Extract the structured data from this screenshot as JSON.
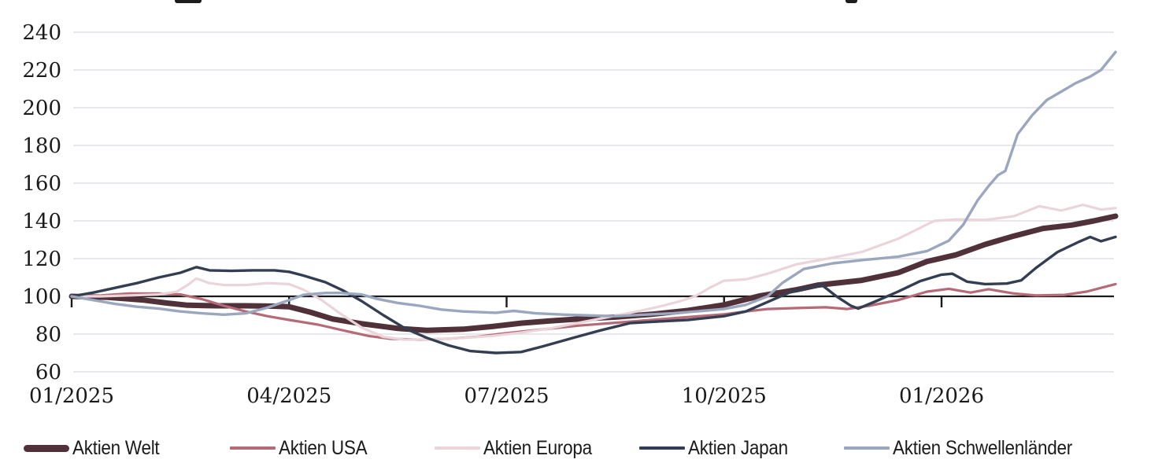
{
  "chart_data": {
    "type": "line",
    "x_unit": "months_since_01_2025",
    "x_axis": {
      "tick_labels": [
        {
          "t": 0,
          "label": "01/2025"
        },
        {
          "t": 3,
          "label": "04/2025"
        },
        {
          "t": 6,
          "label": "07/2025"
        },
        {
          "t": 9,
          "label": "10/2025"
        },
        {
          "t": 12,
          "label": "01/2026"
        }
      ],
      "range": [
        0,
        14.4
      ]
    },
    "y_axis": {
      "min": 60,
      "max": 240,
      "step": 20,
      "ticks": [
        240,
        220,
        200,
        180,
        160,
        140,
        120,
        100,
        80,
        60
      ],
      "baseline": 100
    },
    "grid_on": true,
    "grid_color": "#dfdfe5",
    "baseline_color": "#1a1a1a",
    "text_color": "#1a1a1a",
    "legend_position": "bottom",
    "series": [
      {
        "name": "Aktien Welt",
        "slug": "aktien-welt",
        "color": "#50313a",
        "width": 7,
        "points": [
          [
            0,
            100
          ],
          [
            0.5,
            99.5
          ],
          [
            1,
            98
          ],
          [
            1.3,
            96.5
          ],
          [
            1.6,
            95.3
          ],
          [
            2,
            95
          ],
          [
            2.4,
            95
          ],
          [
            2.8,
            94.8
          ],
          [
            3,
            94.5
          ],
          [
            3.3,
            91.5
          ],
          [
            3.6,
            88
          ],
          [
            4,
            85.5
          ],
          [
            4.5,
            83
          ],
          [
            4.9,
            82
          ],
          [
            5.4,
            82.6
          ],
          [
            5.8,
            84
          ],
          [
            6.2,
            85.8
          ],
          [
            6.6,
            87
          ],
          [
            7,
            88
          ],
          [
            7.5,
            89
          ],
          [
            8,
            90.5
          ],
          [
            8.5,
            92.5
          ],
          [
            9,
            95.5
          ],
          [
            9.5,
            100.3
          ],
          [
            10,
            103.5
          ],
          [
            10.3,
            106
          ],
          [
            10.9,
            108.5
          ],
          [
            11.4,
            112.5
          ],
          [
            11.8,
            118.5
          ],
          [
            12.2,
            122
          ],
          [
            12.6,
            127.5
          ],
          [
            13,
            132
          ],
          [
            13.4,
            136
          ],
          [
            13.8,
            137.8
          ],
          [
            14.1,
            140
          ],
          [
            14.4,
            142.5
          ]
        ]
      },
      {
        "name": "Aktien USA",
        "slug": "aktien-usa",
        "color": "#b56b77",
        "width": 3.2,
        "points": [
          [
            0,
            100
          ],
          [
            0.4,
            100.5
          ],
          [
            0.8,
            101.5
          ],
          [
            1.2,
            101.5
          ],
          [
            1.5,
            101
          ],
          [
            1.8,
            98.5
          ],
          [
            2.1,
            95
          ],
          [
            2.4,
            92
          ],
          [
            2.7,
            89.5
          ],
          [
            3,
            87.5
          ],
          [
            3.4,
            85
          ],
          [
            3.8,
            81.5
          ],
          [
            4.1,
            79
          ],
          [
            4.4,
            77.5
          ],
          [
            4.8,
            77
          ],
          [
            5.2,
            77.6
          ],
          [
            5.6,
            78.6
          ],
          [
            6,
            80.5
          ],
          [
            6.5,
            82.5
          ],
          [
            7,
            84.5
          ],
          [
            7.5,
            86
          ],
          [
            8,
            87.5
          ],
          [
            8.5,
            89
          ],
          [
            9,
            90.5
          ],
          [
            9.3,
            92
          ],
          [
            9.6,
            93.3
          ],
          [
            10,
            93.8
          ],
          [
            10.4,
            94.2
          ],
          [
            10.7,
            93.3
          ],
          [
            11,
            95
          ],
          [
            11.4,
            98
          ],
          [
            11.8,
            102.5
          ],
          [
            12.1,
            104
          ],
          [
            12.4,
            102
          ],
          [
            12.65,
            103.8
          ],
          [
            13,
            101.5
          ],
          [
            13.3,
            100.5
          ],
          [
            13.7,
            100.8
          ],
          [
            14,
            102.5
          ],
          [
            14.2,
            104.5
          ],
          [
            14.4,
            106.5
          ]
        ]
      },
      {
        "name": "Aktien Europa",
        "slug": "aktien-europa",
        "color": "#ecd5da",
        "width": 3.2,
        "points": [
          [
            0,
            100
          ],
          [
            0.4,
            100
          ],
          [
            0.8,
            100.5
          ],
          [
            1.2,
            101
          ],
          [
            1.45,
            102.5
          ],
          [
            1.6,
            106
          ],
          [
            1.72,
            109.5
          ],
          [
            1.9,
            107
          ],
          [
            2.1,
            106
          ],
          [
            2.4,
            106
          ],
          [
            2.7,
            107
          ],
          [
            3,
            106.5
          ],
          [
            3.2,
            103.5
          ],
          [
            3.45,
            98
          ],
          [
            3.7,
            91
          ],
          [
            4,
            83.5
          ],
          [
            4.3,
            78.5
          ],
          [
            4.6,
            77
          ],
          [
            5,
            77.3
          ],
          [
            5.4,
            78
          ],
          [
            5.8,
            79
          ],
          [
            6.2,
            80.8
          ],
          [
            6.6,
            83
          ],
          [
            7,
            86
          ],
          [
            7.4,
            89
          ],
          [
            7.8,
            92
          ],
          [
            8.1,
            94.5
          ],
          [
            8.4,
            97.5
          ],
          [
            8.6,
            100
          ],
          [
            8.8,
            104.5
          ],
          [
            9,
            108.3
          ],
          [
            9.3,
            109
          ],
          [
            9.6,
            112
          ],
          [
            10,
            117
          ],
          [
            10.4,
            119.8
          ],
          [
            10.9,
            123.5
          ],
          [
            11.4,
            130.5
          ],
          [
            11.9,
            140
          ],
          [
            12.2,
            140.8
          ],
          [
            12.6,
            140.5
          ],
          [
            13,
            142.5
          ],
          [
            13.35,
            147.8
          ],
          [
            13.65,
            145.5
          ],
          [
            13.95,
            148.5
          ],
          [
            14.2,
            146
          ],
          [
            14.4,
            146.8
          ]
        ]
      },
      {
        "name": "Aktien Japan",
        "slug": "aktien-japan",
        "color": "#333e53",
        "width": 3.4,
        "points": [
          [
            0,
            100
          ],
          [
            0.3,
            102
          ],
          [
            0.6,
            104.5
          ],
          [
            0.9,
            107
          ],
          [
            1.2,
            110
          ],
          [
            1.5,
            112.5
          ],
          [
            1.72,
            115.5
          ],
          [
            1.9,
            113.8
          ],
          [
            2.2,
            113.5
          ],
          [
            2.5,
            113.8
          ],
          [
            2.8,
            113.8
          ],
          [
            3,
            113
          ],
          [
            3.2,
            111
          ],
          [
            3.5,
            107.5
          ],
          [
            3.75,
            103
          ],
          [
            4,
            97.5
          ],
          [
            4.3,
            90
          ],
          [
            4.6,
            83
          ],
          [
            4.9,
            78
          ],
          [
            5.2,
            74
          ],
          [
            5.5,
            71
          ],
          [
            5.85,
            70
          ],
          [
            6.2,
            70.5
          ],
          [
            6.5,
            73.5
          ],
          [
            6.9,
            77.8
          ],
          [
            7.3,
            82
          ],
          [
            7.7,
            85.8
          ],
          [
            8,
            86.5
          ],
          [
            8.5,
            87.5
          ],
          [
            9,
            89.5
          ],
          [
            9.3,
            92
          ],
          [
            9.6,
            97
          ],
          [
            9.9,
            102
          ],
          [
            10.2,
            105
          ],
          [
            10.35,
            106
          ],
          [
            10.55,
            100
          ],
          [
            10.75,
            95
          ],
          [
            10.85,
            93.5
          ],
          [
            11.1,
            97.5
          ],
          [
            11.4,
            102.5
          ],
          [
            11.7,
            108
          ],
          [
            12,
            111.5
          ],
          [
            12.15,
            112
          ],
          [
            12.35,
            107.8
          ],
          [
            12.6,
            106.5
          ],
          [
            12.9,
            106.8
          ],
          [
            13.1,
            108.5
          ],
          [
            13.3,
            115
          ],
          [
            13.6,
            123.5
          ],
          [
            13.9,
            129
          ],
          [
            14.05,
            131.5
          ],
          [
            14.2,
            129.2
          ],
          [
            14.4,
            131.5
          ]
        ]
      },
      {
        "name": "Aktien Schwellenländer",
        "slug": "aktien-schwellenlaender",
        "color": "#9ba7bf",
        "width": 3.4,
        "points": [
          [
            0,
            100
          ],
          [
            0.3,
            98
          ],
          [
            0.6,
            96
          ],
          [
            0.9,
            94.5
          ],
          [
            1.2,
            93.5
          ],
          [
            1.5,
            92
          ],
          [
            1.8,
            91
          ],
          [
            2.1,
            90.3
          ],
          [
            2.4,
            91
          ],
          [
            2.7,
            94
          ],
          [
            3,
            98
          ],
          [
            3.2,
            100.8
          ],
          [
            3.5,
            101.8
          ],
          [
            3.7,
            101.8
          ],
          [
            4,
            101
          ],
          [
            4.2,
            98.8
          ],
          [
            4.5,
            96.5
          ],
          [
            4.8,
            95
          ],
          [
            5.1,
            93
          ],
          [
            5.4,
            92
          ],
          [
            5.85,
            91.3
          ],
          [
            6.1,
            92.3
          ],
          [
            6.4,
            91
          ],
          [
            6.8,
            90.3
          ],
          [
            7.2,
            89.8
          ],
          [
            7.5,
            89.5
          ],
          [
            7.9,
            90.3
          ],
          [
            8.3,
            91
          ],
          [
            8.7,
            92.3
          ],
          [
            9,
            93.3
          ],
          [
            9.3,
            95.5
          ],
          [
            9.6,
            100
          ],
          [
            9.8,
            107
          ],
          [
            10.1,
            114.5
          ],
          [
            10.5,
            117.5
          ],
          [
            10.9,
            119.2
          ],
          [
            11.4,
            121
          ],
          [
            11.8,
            124
          ],
          [
            12.1,
            129.5
          ],
          [
            12.3,
            138
          ],
          [
            12.5,
            151
          ],
          [
            12.65,
            158.5
          ],
          [
            12.78,
            164.3
          ],
          [
            12.88,
            166.5
          ],
          [
            13.05,
            186
          ],
          [
            13.25,
            196
          ],
          [
            13.45,
            204
          ],
          [
            13.65,
            208.5
          ],
          [
            13.85,
            213
          ],
          [
            14.05,
            216.5
          ],
          [
            14.2,
            220
          ],
          [
            14.4,
            229.5
          ]
        ]
      }
    ]
  }
}
